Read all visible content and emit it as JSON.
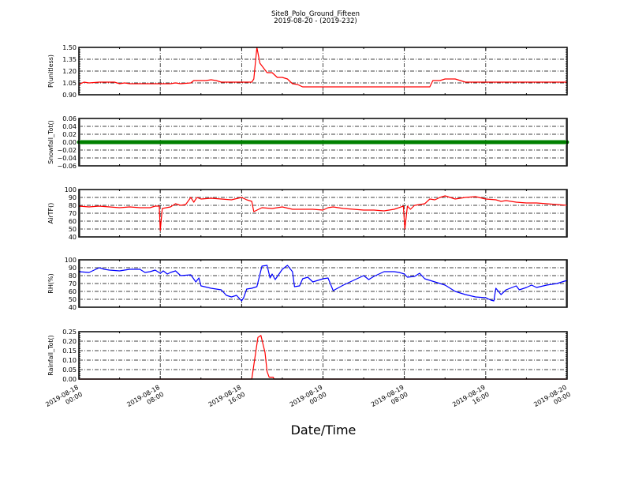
{
  "chart_data": {
    "type": "line",
    "title": "Site8_Polo_Ground_Fifteen",
    "subtitle": "2019-08-20 - (2019-232)",
    "xlabel": "Date/Time",
    "x_unit": "hours since 2019-08-18 00:00",
    "xlim": [
      0,
      48
    ],
    "x_ticks": [
      0,
      8,
      16,
      24,
      32,
      40,
      48
    ],
    "x_tick_labels": [
      [
        "2019-08-18",
        "00:00"
      ],
      [
        "2019-08-18",
        "08:00"
      ],
      [
        "2019-08-18",
        "16:00"
      ],
      [
        "2019-08-19",
        "00:00"
      ],
      [
        "2019-08-19",
        "08:00"
      ],
      [
        "2019-08-19",
        "16:00"
      ],
      [
        "2019-08-20",
        "00:00"
      ]
    ],
    "grid": true,
    "panels": [
      {
        "ylabel": "P(unitless)",
        "ylim": [
          0.9,
          1.5
        ],
        "y_ticks": [
          "0.90",
          "1.05",
          "1.20",
          "1.35",
          "1.50"
        ],
        "color": "#ff0000",
        "points": [
          [
            0,
            1.03
          ],
          [
            0.5,
            1.06
          ],
          [
            1,
            1.05
          ],
          [
            2,
            1.06
          ],
          [
            3.5,
            1.06
          ],
          [
            4,
            1.04
          ],
          [
            4.5,
            1.05
          ],
          [
            5,
            1.04
          ],
          [
            8,
            1.04
          ],
          [
            9,
            1.04
          ],
          [
            9.5,
            1.05
          ],
          [
            10,
            1.04
          ],
          [
            11,
            1.05
          ],
          [
            11.3,
            1.08
          ],
          [
            12.5,
            1.08
          ],
          [
            13,
            1.09
          ],
          [
            13.5,
            1.08
          ],
          [
            14,
            1.06
          ],
          [
            17,
            1.06
          ],
          [
            17.2,
            1.1
          ],
          [
            17.5,
            1.5
          ],
          [
            17.8,
            1.3
          ],
          [
            18.5,
            1.18
          ],
          [
            19,
            1.18
          ],
          [
            19.5,
            1.12
          ],
          [
            20,
            1.12
          ],
          [
            20.5,
            1.1
          ],
          [
            21,
            1.04
          ],
          [
            21.5,
            1.03
          ],
          [
            22,
            1.0
          ],
          [
            34.5,
            1.0
          ],
          [
            34.8,
            1.08
          ],
          [
            35.5,
            1.08
          ],
          [
            36,
            1.1
          ],
          [
            37,
            1.1
          ],
          [
            37.5,
            1.08
          ],
          [
            38,
            1.06
          ],
          [
            48,
            1.06
          ]
        ]
      },
      {
        "ylabel": "Snowfall_Tot()",
        "ylim": [
          -0.06,
          0.06
        ],
        "y_ticks": [
          "−0.06",
          "−0.04",
          "−0.02",
          "0.00",
          "0.02",
          "0.04",
          "0.06"
        ],
        "color": "#008000",
        "points": [
          [
            0,
            0
          ],
          [
            48,
            0
          ]
        ],
        "markers": true
      },
      {
        "ylabel": "AirTF()",
        "ylim": [
          40,
          100
        ],
        "y_ticks": [
          "40",
          "50",
          "60",
          "70",
          "80",
          "90",
          "100"
        ],
        "color": "#ff0000",
        "points": [
          [
            0,
            79
          ],
          [
            1,
            78
          ],
          [
            2,
            79
          ],
          [
            3,
            78
          ],
          [
            4,
            77
          ],
          [
            5,
            78
          ],
          [
            6,
            77
          ],
          [
            7,
            77
          ],
          [
            7.5,
            79
          ],
          [
            7.9,
            79
          ],
          [
            8,
            48
          ],
          [
            8.2,
            76
          ],
          [
            9,
            78
          ],
          [
            9.5,
            82
          ],
          [
            10,
            80
          ],
          [
            10.5,
            81
          ],
          [
            11,
            90
          ],
          [
            11.3,
            84
          ],
          [
            11.6,
            90
          ],
          [
            12,
            88
          ],
          [
            13,
            89
          ],
          [
            14,
            88
          ],
          [
            15,
            87
          ],
          [
            16,
            90
          ],
          [
            16.5,
            87
          ],
          [
            17,
            85
          ],
          [
            17.2,
            72
          ],
          [
            18,
            77
          ],
          [
            19,
            76
          ],
          [
            20,
            78
          ],
          [
            21,
            75
          ],
          [
            23,
            75
          ],
          [
            24,
            74
          ],
          [
            24.5,
            77
          ],
          [
            25,
            78
          ],
          [
            26,
            76
          ],
          [
            27,
            75
          ],
          [
            28,
            74
          ],
          [
            29,
            74
          ],
          [
            30,
            73
          ],
          [
            31,
            75
          ],
          [
            31.9,
            79
          ],
          [
            32.05,
            50
          ],
          [
            32.3,
            79
          ],
          [
            32.6,
            75
          ],
          [
            33,
            80
          ],
          [
            34,
            82
          ],
          [
            34.5,
            88
          ],
          [
            35,
            87
          ],
          [
            35.5,
            90
          ],
          [
            36,
            92
          ],
          [
            37,
            88
          ],
          [
            38,
            90
          ],
          [
            39,
            91
          ],
          [
            40,
            88
          ],
          [
            41,
            87
          ],
          [
            41.5,
            85
          ],
          [
            42,
            86
          ],
          [
            43,
            84
          ],
          [
            44,
            83
          ],
          [
            45,
            83
          ],
          [
            46,
            82
          ],
          [
            47,
            81
          ],
          [
            48,
            80
          ]
        ]
      },
      {
        "ylabel": "RH(%)",
        "ylim": [
          40,
          100
        ],
        "y_ticks": [
          "40",
          "50",
          "60",
          "70",
          "80",
          "90",
          "100"
        ],
        "color": "#0000ff",
        "points": [
          [
            0,
            85
          ],
          [
            1,
            84
          ],
          [
            1.5,
            87
          ],
          [
            2,
            90
          ],
          [
            2.5,
            88
          ],
          [
            3,
            87
          ],
          [
            4,
            86
          ],
          [
            5,
            88
          ],
          [
            6,
            88
          ],
          [
            6.5,
            84
          ],
          [
            7,
            85
          ],
          [
            7.5,
            87
          ],
          [
            8,
            83
          ],
          [
            8.3,
            86
          ],
          [
            8.7,
            82
          ],
          [
            9,
            84
          ],
          [
            9.5,
            86
          ],
          [
            10,
            80
          ],
          [
            11,
            81
          ],
          [
            11.5,
            72
          ],
          [
            11.8,
            77
          ],
          [
            12,
            67
          ],
          [
            13,
            64
          ],
          [
            14,
            62
          ],
          [
            14.5,
            55
          ],
          [
            15,
            53
          ],
          [
            15.5,
            55
          ],
          [
            16,
            48
          ],
          [
            16.2,
            52
          ],
          [
            16.5,
            63
          ],
          [
            17,
            64
          ],
          [
            17.5,
            66
          ],
          [
            18,
            92
          ],
          [
            18.5,
            93
          ],
          [
            18.8,
            77
          ],
          [
            19,
            82
          ],
          [
            19.3,
            75
          ],
          [
            20,
            88
          ],
          [
            20.5,
            93
          ],
          [
            21,
            85
          ],
          [
            21.2,
            66
          ],
          [
            21.7,
            67
          ],
          [
            22,
            76
          ],
          [
            22.5,
            78
          ],
          [
            23,
            72
          ],
          [
            24,
            76
          ],
          [
            24.5,
            77
          ],
          [
            25,
            61
          ],
          [
            26,
            68
          ],
          [
            27,
            74
          ],
          [
            28,
            80
          ],
          [
            28.5,
            75
          ],
          [
            29,
            79
          ],
          [
            30,
            85
          ],
          [
            31,
            85
          ],
          [
            31.5,
            84
          ],
          [
            32,
            82
          ],
          [
            32.3,
            78
          ],
          [
            33,
            79
          ],
          [
            33.5,
            83
          ],
          [
            34,
            76
          ],
          [
            35,
            72
          ],
          [
            36,
            68
          ],
          [
            37,
            60
          ],
          [
            38,
            56
          ],
          [
            39,
            53
          ],
          [
            40,
            52
          ],
          [
            40.5,
            49
          ],
          [
            40.8,
            48
          ],
          [
            41,
            64
          ],
          [
            41.5,
            56
          ],
          [
            42,
            62
          ],
          [
            43,
            67
          ],
          [
            43.3,
            62
          ],
          [
            44,
            65
          ],
          [
            44.5,
            68
          ],
          [
            45,
            65
          ],
          [
            46,
            68
          ],
          [
            47,
            70
          ],
          [
            48,
            74
          ]
        ]
      },
      {
        "ylabel": "Rainfall_Tot()",
        "ylim": [
          0,
          0.25
        ],
        "y_ticks": [
          "0.00",
          "0.05",
          "0.10",
          "0.15",
          "0.20",
          "0.25"
        ],
        "color": "#ff0000",
        "points": [
          [
            0,
            0
          ],
          [
            17,
            0
          ],
          [
            17.6,
            0.22
          ],
          [
            17.9,
            0.23
          ],
          [
            18.3,
            0.14
          ],
          [
            18.5,
            0.04
          ],
          [
            18.7,
            0.01
          ],
          [
            19.1,
            0.01
          ],
          [
            19.2,
            0
          ],
          [
            48,
            0
          ]
        ]
      }
    ]
  }
}
